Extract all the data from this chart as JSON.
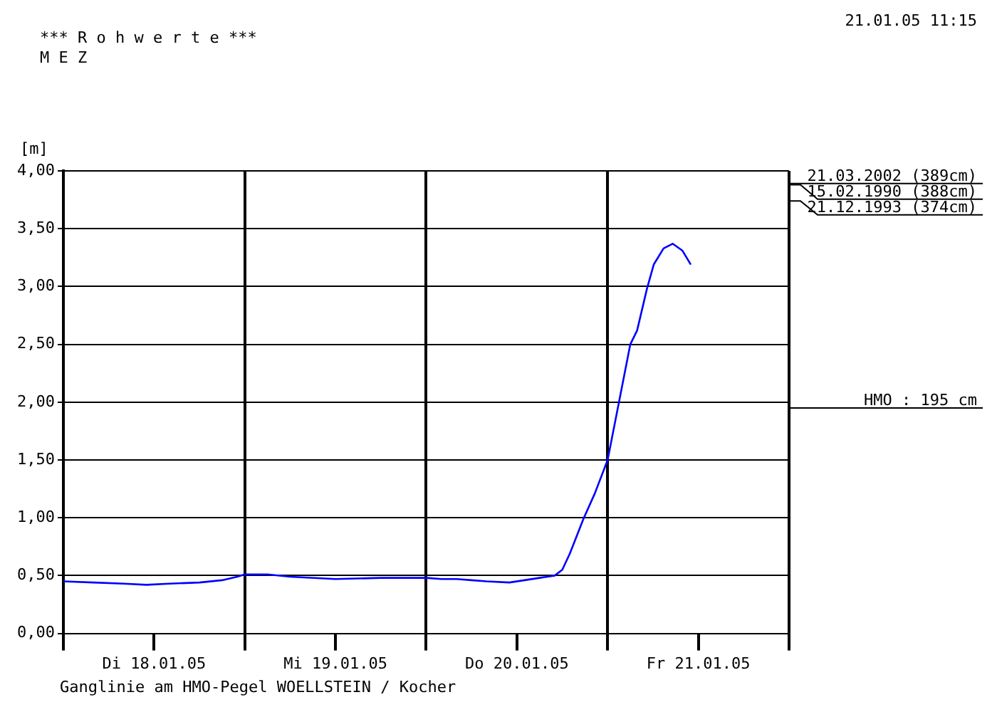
{
  "chart_data": {
    "type": "line",
    "title": "*** R o h w e r t e ***",
    "subtitle": "M E Z",
    "ylabel": "[m]",
    "annotations": [
      "21.01.05 11:15",
      "Ganglinie am HMO-Pegel WOELLSTEIN / Kocher"
    ],
    "x": [
      "--01-18T00:00",
      "--01-18T04:00",
      "--01-18T08:00",
      "--01-18T11:00",
      "--01-18T14:00",
      "--01-18T18:00",
      "--01-18T21:00",
      "--01-18T23:00",
      "--01-19T00:00",
      "--01-19T03:00",
      "--01-19T06:00",
      "--01-19T12:00",
      "--01-19T18:00",
      "--01-20T00:00",
      "--01-20T02:00",
      "--01-20T04:00",
      "--01-20T06:00",
      "--01-20T08:00",
      "--01-20T11:00",
      "--01-20T13:00",
      "--01-20T15:00",
      "--01-20T17:00",
      "--01-20T18:00",
      "--01-20T19:00",
      "--01-20T20:48",
      "--01-20T22:18",
      "--01-21T00:00",
      "--01-21T01:30",
      "--01-21T03:00",
      "--01-21T03:54",
      "--01-21T05:12",
      "--01-21T06:06",
      "--01-21T07:24",
      "--01-21T08:36",
      "--01-21T09:54",
      "--01-21T11:00"
    ],
    "series": [
      {
        "color": "#0000ff",
        "values": [
          0.45,
          0.44,
          0.43,
          0.42,
          0.43,
          0.44,
          0.46,
          0.49,
          0.51,
          0.51,
          0.49,
          0.47,
          0.48,
          0.48,
          0.47,
          0.47,
          0.46,
          0.45,
          0.44,
          0.46,
          0.48,
          0.5,
          0.55,
          0.69,
          0.99,
          1.21,
          1.5,
          2.0,
          2.5,
          2.62,
          2.98,
          3.19,
          3.33,
          3.37,
          3.31,
          3.19
        ]
      }
    ],
    "xlim": [
      "--01-18T00:00",
      "--01-22T00:00"
    ],
    "xticks": [
      {
        "value": "--01-18T00:00",
        "label": null
      },
      {
        "value": "--01-18T12:00",
        "label": "Di 18.01.05"
      },
      {
        "value": "--01-19T00:00",
        "label": null
      },
      {
        "value": "--01-19T12:00",
        "label": "Mi 19.01.05"
      },
      {
        "value": "--01-20T00:00",
        "label": null
      },
      {
        "value": "--01-20T12:00",
        "label": "Do 20.01.05"
      },
      {
        "value": "--01-21T00:00",
        "label": null
      },
      {
        "value": "--01-21T12:00",
        "label": "Fr 21.01.05"
      },
      {
        "value": "--01-22T00:00",
        "label": null
      }
    ],
    "ylim": [
      0,
      4
    ],
    "yticks": [
      {
        "value": 0,
        "label": "0,00"
      },
      {
        "value": 0.5,
        "label": "0,50"
      },
      {
        "value": 1,
        "label": "1,00"
      },
      {
        "value": 1.5,
        "label": "1,50"
      },
      {
        "value": 2,
        "label": "2,00"
      },
      {
        "value": 2.5,
        "label": "2,50"
      },
      {
        "value": 3,
        "label": "3,00"
      },
      {
        "value": 3.5,
        "label": "3,50"
      },
      {
        "value": 4,
        "label": "4,00"
      }
    ],
    "ref_lines": [
      {
        "axis": "y",
        "value": 3.89,
        "label": "21.03.2002 (389cm)",
        "color": "#000000"
      },
      {
        "axis": "y",
        "value": 3.88,
        "label": "15.02.1990 (388cm)",
        "color": "#000000"
      },
      {
        "axis": "y",
        "value": 3.74,
        "label": "21.12.1993 (374cm)",
        "color": "#000000"
      },
      {
        "axis": "y",
        "value": 1.95,
        "label": "HMO : 195 cm",
        "color": "#000000"
      }
    ],
    "grid": true,
    "legend": false,
    "marker": "none",
    "line_style": "solid"
  }
}
